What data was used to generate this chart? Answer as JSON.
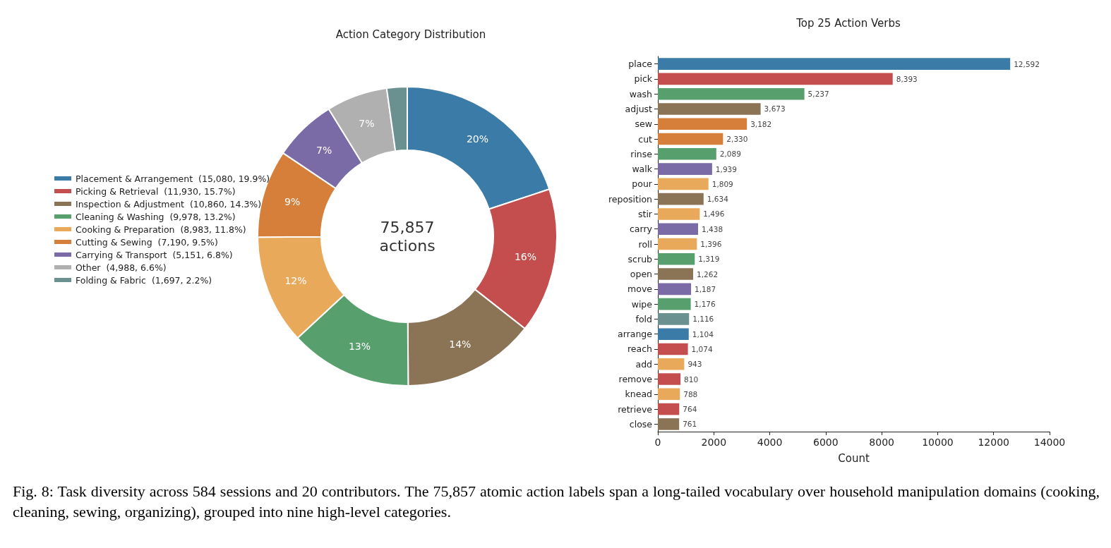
{
  "chart_data": [
    {
      "type": "donut",
      "title": "Action Category Distribution",
      "categories": [
        "Placement & Arrangement  (15,080, 19.9%)",
        "Picking & Retrieval  (11,930, 15.7%)",
        "Inspection & Adjustment  (10,860, 14.3%)",
        "Cleaning & Washing  (9,978, 13.2%)",
        "Cooking & Preparation  (8,983, 11.8%)",
        "Cutting & Sewing  (7,190, 9.5%)",
        "Carrying & Transport  (5,151, 6.8%)",
        "Other  (4,988, 6.6%)",
        "Folding & Fabric  (1,697, 2.2%)"
      ],
      "values": [
        19.9,
        15.7,
        14.3,
        13.2,
        11.8,
        9.5,
        6.8,
        6.6,
        2.2
      ],
      "colors": [
        "#3b7ba8",
        "#c44e4e",
        "#8b7355",
        "#57a06e",
        "#e9a95a",
        "#d57f3a",
        "#7a6aa6",
        "#b0b0b0",
        "#6a9090"
      ],
      "value_labels": [
        "20%",
        "16%",
        "14%",
        "13%",
        "12%",
        "9%",
        "7%",
        "7%",
        null
      ],
      "legend": "left",
      "annotations": [
        "75,857\nactions",
        "Fig. 8: Task diversity across 584 sessions and 20 contributors. The 75,857 atomic action labels span a long-tailed vocabulary over household manipulation domains (cooking, cleaning, sewing, organizing), grouped into nine high-level categories."
      ]
    },
    {
      "type": "bar",
      "title": "Top 25 Action Verbs",
      "xlabel": "Count",
      "orientation": "horizontal",
      "categories": [
        "place",
        "pick",
        "wash",
        "adjust",
        "sew",
        "cut",
        "rinse",
        "walk",
        "pour",
        "reposition",
        "stir",
        "carry",
        "roll",
        "scrub",
        "open",
        "move",
        "wipe",
        "fold",
        "arrange",
        "reach",
        "add",
        "remove",
        "knead",
        "retrieve",
        "close"
      ],
      "values": [
        12592,
        8393,
        5237,
        3673,
        3182,
        2330,
        2089,
        1939,
        1809,
        1634,
        1496,
        1438,
        1396,
        1319,
        1262,
        1187,
        1176,
        1116,
        1104,
        1074,
        943,
        810,
        788,
        764,
        761
      ],
      "colors": [
        "#3b7ba8",
        "#c44e4e",
        "#57a06e",
        "#8b7355",
        "#d57f3a",
        "#d57f3a",
        "#57a06e",
        "#7a6aa6",
        "#e9a95a",
        "#8b7355",
        "#e9a95a",
        "#7a6aa6",
        "#e9a95a",
        "#57a06e",
        "#8b7355",
        "#7a6aa6",
        "#57a06e",
        "#6a9090",
        "#3b7ba8",
        "#c44e4e",
        "#e9a95a",
        "#c44e4e",
        "#e9a95a",
        "#c44e4e",
        "#8b7355"
      ],
      "value_labels": [
        "12,592",
        "8,393",
        "5,237",
        "3,673",
        "3,182",
        "2,330",
        "2,089",
        "1,939",
        "1,809",
        "1,634",
        "1,496",
        "1,438",
        "1,396",
        "1,319",
        "1,262",
        "1,187",
        "1,176",
        "1,116",
        "1,104",
        "1,074",
        "943",
        "810",
        "788",
        "764",
        "761"
      ],
      "xlim": [
        0,
        14000
      ],
      "xticks": [
        0,
        2000,
        4000,
        6000,
        8000,
        10000,
        12000,
        14000
      ],
      "grid": false
    }
  ]
}
